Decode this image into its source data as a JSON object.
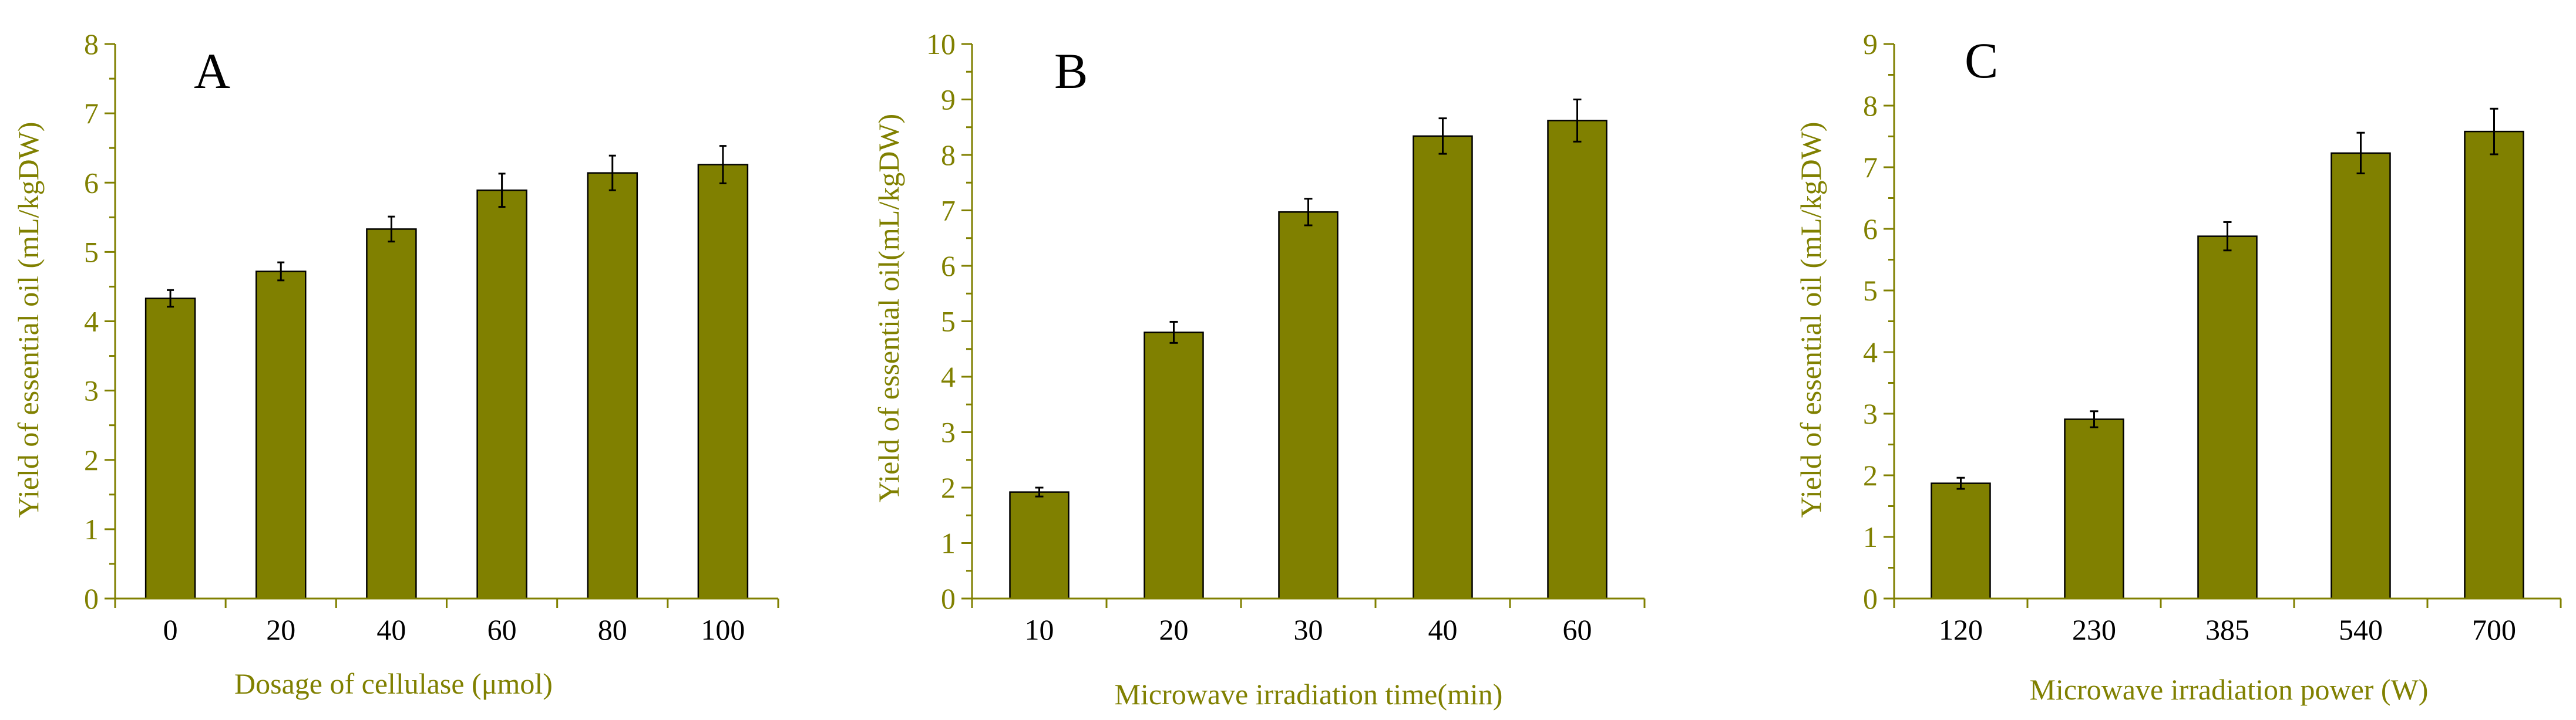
{
  "colors": {
    "bar_fill": "#808000",
    "bar_stroke": "#000000",
    "axis_color": "#808000",
    "text_color": "#808000",
    "dark_text": "#000000",
    "error_bar": "#000000"
  },
  "chart_data": [
    {
      "type": "bar",
      "panel_label": "A",
      "categories": [
        "0",
        "20",
        "40",
        "60",
        "80",
        "100"
      ],
      "values": [
        4.33,
        4.72,
        5.33,
        5.89,
        6.14,
        6.26
      ],
      "errors": [
        0.12,
        0.13,
        0.18,
        0.24,
        0.25,
        0.27
      ],
      "ylabel": "Yield of essential oil (mL/kgDW)",
      "xlabel": "Dosage of cellulase (μmol)",
      "ylim": [
        0,
        8
      ],
      "yticks": [
        "0",
        "1",
        "2",
        "3",
        "4",
        "5",
        "6",
        "7",
        "8"
      ],
      "grid": false
    },
    {
      "type": "bar",
      "panel_label": "B",
      "categories": [
        "10",
        "20",
        "30",
        "40",
        "60"
      ],
      "values": [
        1.92,
        4.8,
        6.97,
        8.34,
        8.62
      ],
      "errors": [
        0.08,
        0.19,
        0.24,
        0.32,
        0.38
      ],
      "ylabel": "Yield of essential oil(mL/kgDW)",
      "xlabel": "Microwave irradiation time(min)",
      "ylim": [
        0,
        10
      ],
      "yticks": [
        "0",
        "1",
        "2",
        "3",
        "4",
        "5",
        "6",
        "7",
        "8",
        "9",
        "10"
      ],
      "grid": false
    },
    {
      "type": "bar",
      "panel_label": "C",
      "categories": [
        "120",
        "230",
        "385",
        "540",
        "700"
      ],
      "values": [
        1.87,
        2.91,
        5.88,
        7.23,
        7.58
      ],
      "errors": [
        0.09,
        0.13,
        0.23,
        0.33,
        0.37
      ],
      "ylabel": "Yield of essential oil (mL/kgDW)",
      "xlabel": "Microwave irradiation power (W)",
      "ylim": [
        0,
        9
      ],
      "yticks": [
        "0",
        "1",
        "2",
        "3",
        "4",
        "5",
        "6",
        "7",
        "8",
        "9"
      ],
      "grid": false
    }
  ]
}
